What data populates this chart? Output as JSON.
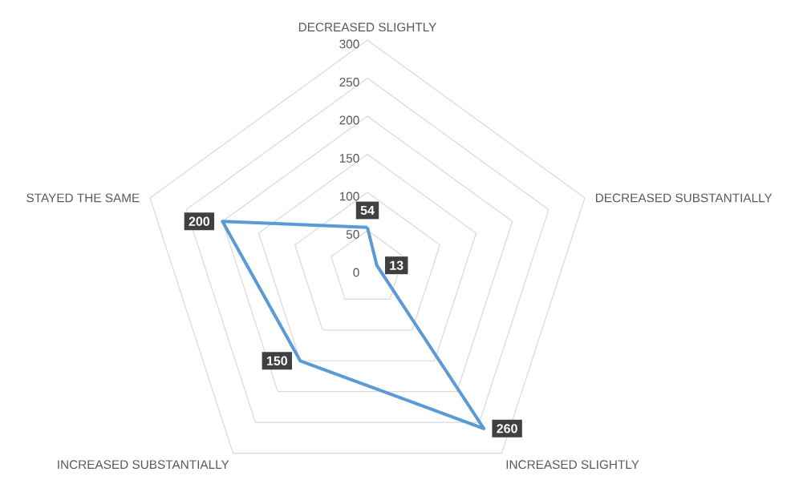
{
  "chart_data": {
    "type": "radar",
    "categories": [
      "DECREASED SLIGHTLY",
      "DECREASED SUBSTANTIALLY",
      "INCREASED SLIGHTLY",
      "INCREASED SUBSTANTIALLY",
      "STAYED THE SAME"
    ],
    "series": [
      {
        "color": "#5b9bd5",
        "values": [
          54,
          13,
          260,
          150,
          200
        ]
      }
    ],
    "ylim": [
      0,
      300
    ],
    "yticks": [
      0,
      50,
      100,
      150,
      200,
      250,
      300
    ],
    "grid": true,
    "data_labels": true
  }
}
